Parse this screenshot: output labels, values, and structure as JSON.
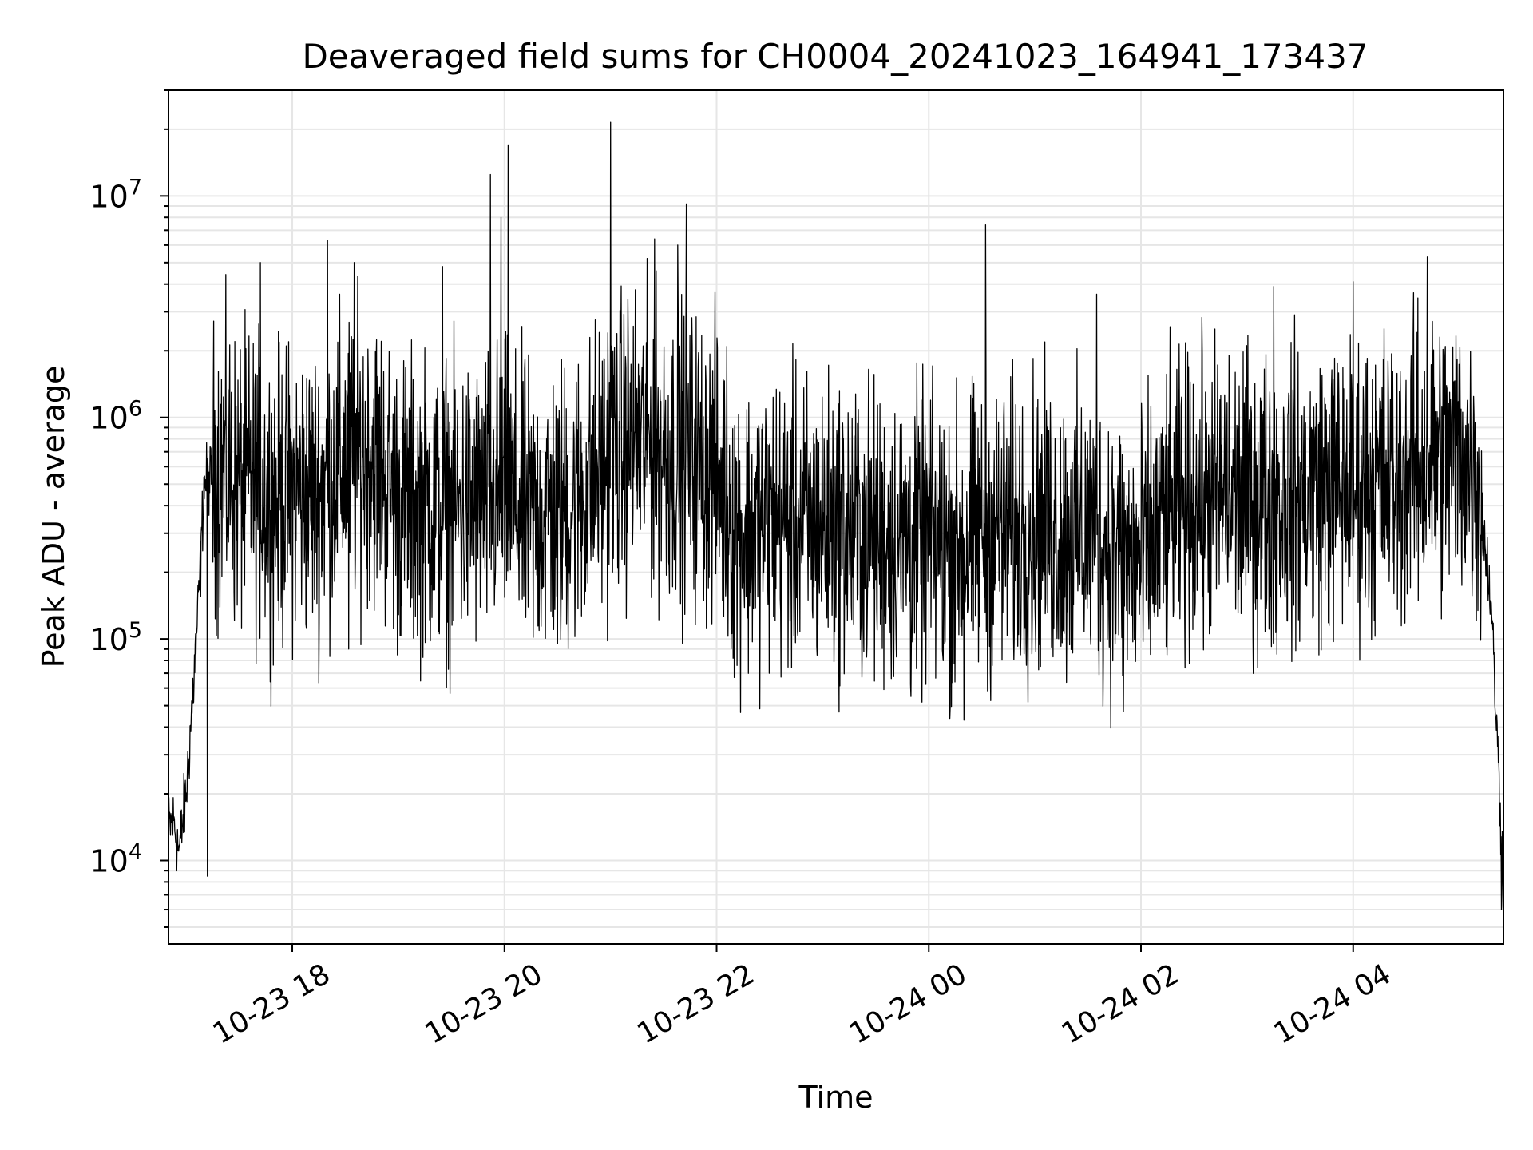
{
  "chart_data": {
    "type": "line",
    "title": "Deaveraged field sums for CH0004_20241023_164941_173437",
    "xlabel": "Time",
    "ylabel": "Peak ADU - average",
    "yscale": "log",
    "xlim": [
      "2024-10-23 16:50",
      "2024-10-24 05:25"
    ],
    "ylim": [
      4200,
      30000000
    ],
    "grid": "on",
    "legend": "none",
    "line_color": "#000000",
    "grid_color": "#e6e6e6",
    "x_ticks": [
      {
        "value": "2024-10-23 18:00",
        "label": "10-23 18"
      },
      {
        "value": "2024-10-23 20:00",
        "label": "10-23 20"
      },
      {
        "value": "2024-10-23 22:00",
        "label": "10-23 22"
      },
      {
        "value": "2024-10-24 00:00",
        "label": "10-24 00"
      },
      {
        "value": "2024-10-24 02:00",
        "label": "10-24 02"
      },
      {
        "value": "2024-10-24 04:00",
        "label": "10-24 04"
      }
    ],
    "y_ticks": [
      {
        "value": 10000,
        "base": "10",
        "exp": "4"
      },
      {
        "value": 100000,
        "base": "10",
        "exp": "5"
      },
      {
        "value": 1000000,
        "base": "10",
        "exp": "6"
      },
      {
        "value": 10000000,
        "base": "10",
        "exp": "7"
      }
    ],
    "series": [
      {
        "x": [
          "2024-10-23 16:50",
          "2024-10-23 16:53",
          "2024-10-23 16:56",
          "2024-10-23 17:00",
          "2024-10-23 17:04",
          "2024-10-23 17:08",
          "2024-10-23 17:10",
          "2024-10-23 17:15",
          "2024-10-23 17:20",
          "2024-10-23 17:30",
          "2024-10-23 17:40",
          "2024-10-23 17:50",
          "2024-10-23 18:00",
          "2024-10-23 18:15",
          "2024-10-23 18:30",
          "2024-10-23 18:45",
          "2024-10-23 19:00",
          "2024-10-23 19:15",
          "2024-10-23 19:30",
          "2024-10-23 19:45",
          "2024-10-23 20:00",
          "2024-10-23 20:15",
          "2024-10-23 20:30",
          "2024-10-23 20:45",
          "2024-10-23 21:00",
          "2024-10-23 21:15",
          "2024-10-23 21:30",
          "2024-10-23 21:45",
          "2024-10-23 22:00",
          "2024-10-23 22:15",
          "2024-10-23 22:30",
          "2024-10-23 22:45",
          "2024-10-23 23:00",
          "2024-10-23 23:15",
          "2024-10-23 23:30",
          "2024-10-23 23:45",
          "2024-10-24 00:00",
          "2024-10-24 00:15",
          "2024-10-24 00:30",
          "2024-10-24 00:45",
          "2024-10-24 01:00",
          "2024-10-24 01:15",
          "2024-10-24 01:30",
          "2024-10-24 01:45",
          "2024-10-24 02:00",
          "2024-10-24 02:15",
          "2024-10-24 02:30",
          "2024-10-24 02:45",
          "2024-10-24 03:00",
          "2024-10-24 03:15",
          "2024-10-24 03:30",
          "2024-10-24 03:45",
          "2024-10-24 04:00",
          "2024-10-24 04:15",
          "2024-10-24 04:30",
          "2024-10-24 04:45",
          "2024-10-24 05:00",
          "2024-10-24 05:10",
          "2024-10-24 05:18",
          "2024-10-24 05:25"
        ],
        "y": [
          14000,
          15000,
          11000,
          20000,
          60000,
          200000,
          500000,
          550000,
          600000,
          500000,
          480000,
          420000,
          460000,
          450000,
          650000,
          700000,
          420000,
          400000,
          380000,
          400000,
          450000,
          350000,
          380000,
          450000,
          700000,
          800000,
          700000,
          650000,
          550000,
          300000,
          350000,
          320000,
          330000,
          310000,
          290000,
          280000,
          280000,
          250000,
          300000,
          300000,
          330000,
          300000,
          300000,
          250000,
          220000,
          350000,
          420000,
          450000,
          430000,
          420000,
          450000,
          480000,
          500000,
          520000,
          550000,
          650000,
          700000,
          550000,
          150000,
          8000
        ],
        "spikes": [
          {
            "x": "2024-10-23 17:42",
            "y": 5000000
          },
          {
            "x": "2024-10-23 18:20",
            "y": 6300000
          },
          {
            "x": "2024-10-23 18:35",
            "y": 5000000
          },
          {
            "x": "2024-10-23 19:25",
            "y": 4800000
          },
          {
            "x": "2024-10-23 19:52",
            "y": 12500000
          },
          {
            "x": "2024-10-23 19:58",
            "y": 8000000
          },
          {
            "x": "2024-10-23 20:02",
            "y": 17000000
          },
          {
            "x": "2024-10-23 21:00",
            "y": 21500000
          },
          {
            "x": "2024-10-23 21:25",
            "y": 6400000
          },
          {
            "x": "2024-10-23 21:38",
            "y": 6000000
          },
          {
            "x": "2024-10-23 21:43",
            "y": 9200000
          },
          {
            "x": "2024-10-23 23:50",
            "y": 4700000
          },
          {
            "x": "2024-10-24 00:32",
            "y": 7400000
          },
          {
            "x": "2024-10-24 01:35",
            "y": 3600000
          },
          {
            "x": "2024-10-24 03:15",
            "y": 3900000
          },
          {
            "x": "2024-10-24 04:00",
            "y": 4100000
          },
          {
            "x": "2024-10-24 04:42",
            "y": 5300000
          }
        ],
        "dips": [
          {
            "x": "2024-10-23 17:12",
            "y": 8500
          },
          {
            "x": "2024-10-23 18:32",
            "y": 90000
          },
          {
            "x": "2024-10-23 20:30",
            "y": 95000
          },
          {
            "x": "2024-10-23 22:10",
            "y": 67000
          },
          {
            "x": "2024-10-23 23:50",
            "y": 55000
          },
          {
            "x": "2024-10-24 00:20",
            "y": 43000
          },
          {
            "x": "2024-10-24 01:50",
            "y": 47000
          },
          {
            "x": "2024-10-24 05:24",
            "y": 6000
          }
        ]
      }
    ]
  }
}
